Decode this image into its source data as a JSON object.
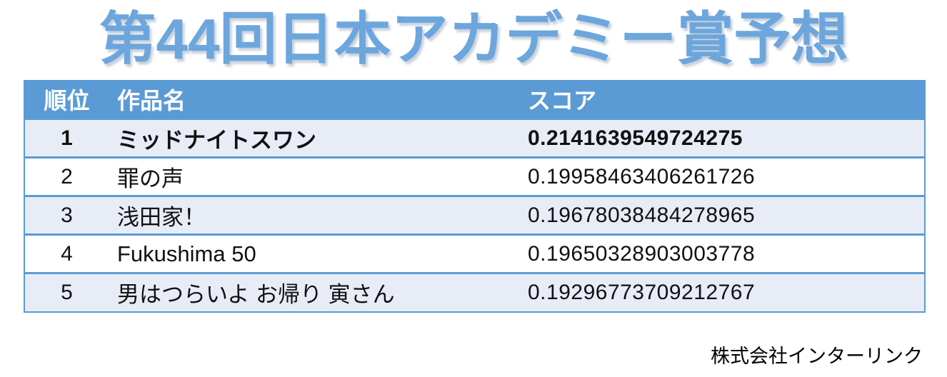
{
  "title": "第44回日本アカデミー賞予想",
  "table": {
    "columns": [
      {
        "label": "順位"
      },
      {
        "label": "作品名"
      },
      {
        "label": "スコア"
      }
    ],
    "rows": [
      {
        "rank": "1",
        "name": "ミッドナイトスワン",
        "score": "0.2141639549724275",
        "highlight": true
      },
      {
        "rank": "2",
        "name": "罪の声",
        "score": "0.19958463406261726",
        "highlight": false
      },
      {
        "rank": "3",
        "name": "浅田家！",
        "score": "0.19678038484278965",
        "highlight": false
      },
      {
        "rank": "4",
        "name": "Fukushima 50",
        "score": "0.19650328903003778",
        "highlight": false
      },
      {
        "rank": "5",
        "name": "男はつらいよ お帰り 寅さん",
        "score": "0.19296773709212767",
        "highlight": false
      }
    ]
  },
  "footer": {
    "company": "株式会社インターリンク"
  },
  "colors": {
    "header_bg": "#5B9BD5",
    "band_bg": "#E8ECF6",
    "border": "#5B9BD5",
    "title_text": "#6CA6DC",
    "header_text": "#FFFFFF",
    "body_text": "#111111"
  },
  "chart_data": {
    "type": "table",
    "title": "第44回日本アカデミー賞予想",
    "columns": [
      "順位",
      "作品名",
      "スコア"
    ],
    "rows": [
      [
        1,
        "ミッドナイトスワン",
        0.2141639549724275
      ],
      [
        2,
        "罪の声",
        0.19958463406261726
      ],
      [
        3,
        "浅田家！",
        0.19678038484278965
      ],
      [
        4,
        "Fukushima 50",
        0.19650328903003778
      ],
      [
        5,
        "男はつらいよ お帰り 寅さん",
        0.19296773709212767
      ]
    ],
    "notes": "Ranking table of predicted winners, banded rows, rank 1 emphasized in bold",
    "source_caption": "株式会社インターリンク"
  }
}
